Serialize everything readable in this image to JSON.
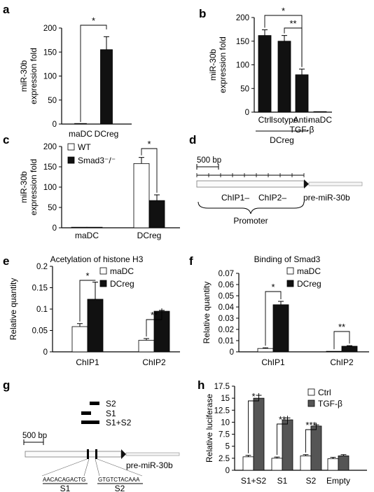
{
  "panels": [
    {
      "letter": "a",
      "chart_data": {
        "type": "bar",
        "ylabel": "miR-30b\nexpression fold",
        "ylim": [
          0,
          200
        ],
        "yticks": [
          0,
          50,
          100,
          150,
          200
        ],
        "categories": [
          "maDC",
          "DCreg"
        ],
        "series": [
          {
            "values": [
              1,
              155
            ],
            "errors": [
              0,
              27
            ],
            "color": "#111111"
          }
        ],
        "significance": [
          {
            "from": 0,
            "to": 1,
            "label": "*"
          }
        ]
      }
    },
    {
      "letter": "b",
      "chart_data": {
        "type": "bar",
        "ylabel": "miR-30b\nexpression fold",
        "ylim": [
          0,
          200
        ],
        "yticks": [
          0,
          50,
          100,
          150,
          200
        ],
        "categories": [
          "Ctrl",
          "Isotype",
          "Anti-\nTGF-β",
          "maDC"
        ],
        "series": [
          {
            "values": [
              162,
              150,
              79,
              1
            ],
            "errors": [
              12,
              12,
              12,
              0
            ],
            "color": "#111111"
          }
        ],
        "group_label": "DCreg",
        "significance": [
          {
            "from": 0,
            "to": 2,
            "label": "*"
          },
          {
            "from": 1,
            "to": 2,
            "label": "**"
          }
        ]
      }
    },
    {
      "letter": "c",
      "chart_data": {
        "type": "bar",
        "ylabel": "miR-30b\nexpression fold",
        "ylim": [
          0,
          200
        ],
        "yticks": [
          0,
          50,
          100,
          150,
          200
        ],
        "categories": [
          "maDC",
          "DCreg"
        ],
        "series": [
          {
            "name": "WT",
            "values": [
              1,
              158
            ],
            "errors": [
              0,
              15
            ],
            "color": "#ffffff"
          },
          {
            "name": "Smad3⁻/⁻",
            "values": [
              1,
              67
            ],
            "errors": [
              0,
              14
            ],
            "color": "#111111"
          }
        ],
        "legend": "top-left",
        "significance": [
          {
            "group": 1,
            "label": "*"
          }
        ]
      }
    },
    {
      "letter": "d",
      "diagram": {
        "scale_label": "500 bp",
        "region_labels": [
          "ChIP1–",
          "ChIP2–"
        ],
        "brace_label": "Promoter",
        "gene_label": "pre-miR-30b"
      }
    },
    {
      "letter": "e",
      "chart_data": {
        "type": "bar",
        "title": "Acetylation of histone H3",
        "ylabel": "Relative quantity",
        "ylim": [
          0,
          0.2
        ],
        "yticks": [
          0,
          0.05,
          0.1,
          0.15,
          0.2
        ],
        "ytick_labels": [
          "0",
          "0.05",
          "0.1",
          "0.15",
          "0.2"
        ],
        "categories": [
          "ChIP1",
          "ChIP2"
        ],
        "series": [
          {
            "name": "maDC",
            "values": [
              0.059,
              0.027
            ],
            "errors": [
              0.007,
              0.004
            ],
            "color": "#ffffff"
          },
          {
            "name": "DCreg",
            "values": [
              0.123,
              0.095
            ],
            "errors": [
              0.04,
              0.002
            ],
            "color": "#111111"
          }
        ],
        "legend": "top-right",
        "significance": [
          {
            "group": 0,
            "label": "*"
          },
          {
            "group": 1,
            "label": "**"
          }
        ]
      }
    },
    {
      "letter": "f",
      "chart_data": {
        "type": "bar",
        "title": "Binding of Smad3",
        "ylabel": "Relative quantity",
        "ylim": [
          0,
          0.07
        ],
        "yticks": [
          0,
          0.01,
          0.02,
          0.03,
          0.04,
          0.05,
          0.06,
          0.07
        ],
        "ytick_labels": [
          "0",
          "0.01",
          "0.02",
          "0.03",
          "0.04",
          "0.05",
          "0.06",
          "0.07"
        ],
        "categories": [
          "ChIP1",
          "ChIP2"
        ],
        "series": [
          {
            "name": "maDC",
            "values": [
              0.003,
              0.0003
            ],
            "errors": [
              0.0006,
              0
            ],
            "color": "#ffffff"
          },
          {
            "name": "DCreg",
            "values": [
              0.042,
              0.005
            ],
            "errors": [
              0.003,
              0.0005
            ],
            "color": "#111111"
          }
        ],
        "legend": "top-right",
        "significance": [
          {
            "group": 0,
            "label": "*"
          },
          {
            "group": 1,
            "label": "**"
          }
        ]
      }
    },
    {
      "letter": "g",
      "diagram": {
        "fragment_labels": [
          "S2",
          "S1",
          "S1+S2"
        ],
        "scale_label": "500 bp",
        "gene_label": "pre-miR-30b",
        "seq1": "AACACAGACTG",
        "seq2": "GTGTCTACAAA",
        "site_labels": [
          "S1",
          "S2"
        ]
      }
    },
    {
      "letter": "h",
      "chart_data": {
        "type": "bar",
        "ylabel": "Relative luciferase",
        "ylim": [
          0,
          17.5
        ],
        "yticks": [
          0,
          2.5,
          5,
          7.5,
          10,
          12.5,
          15,
          17.5
        ],
        "ytick_labels": [
          "0",
          "2.5",
          "5",
          "7.5",
          "10",
          "12.5",
          "15",
          "17.5"
        ],
        "categories": [
          "S1+S2",
          "S1",
          "S2",
          "Empty"
        ],
        "series": [
          {
            "name": "Ctrl",
            "values": [
              2.8,
              2.5,
              3.0,
              2.4
            ],
            "errors": [
              0.3,
              0.25,
              0.25,
              0.3
            ],
            "color": "#ffffff"
          },
          {
            "name": "TGF-β",
            "values": [
              15.0,
              10.5,
              9.2,
              3.0
            ],
            "errors": [
              0.6,
              0.4,
              0.25,
              0.25
            ],
            "color": "#555555"
          }
        ],
        "legend": "top-right",
        "significance": [
          {
            "group": 0,
            "label": "*"
          },
          {
            "group": 1,
            "label": "**"
          },
          {
            "group": 2,
            "label": "***"
          }
        ]
      }
    }
  ]
}
